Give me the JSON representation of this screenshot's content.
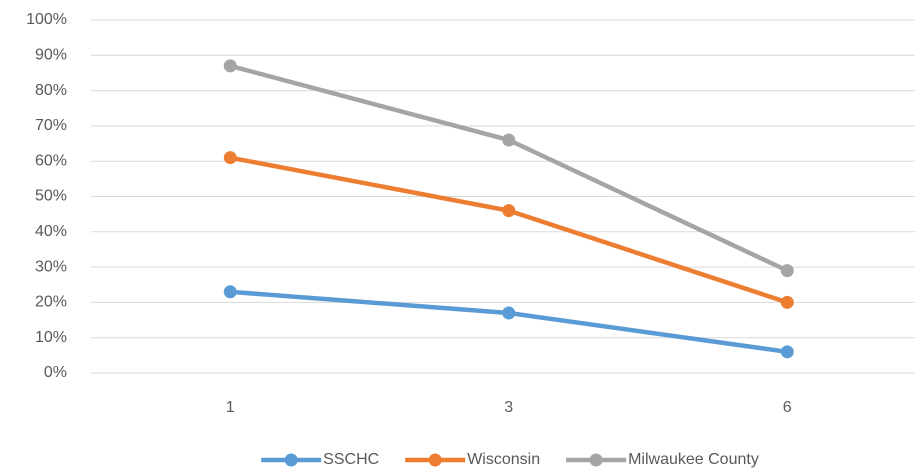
{
  "chart_data": {
    "type": "line",
    "categories": [
      "1",
      "3",
      "6"
    ],
    "series": [
      {
        "name": "SSCHC",
        "color": "#5b9bd5",
        "values": [
          23,
          17,
          6
        ]
      },
      {
        "name": "Wisconsin",
        "color": "#ed7d31",
        "values": [
          61,
          46,
          20
        ]
      },
      {
        "name": "Milwaukee County",
        "color": "#a5a5a5",
        "values": [
          87,
          66,
          29
        ]
      }
    ],
    "ylim": [
      0,
      100
    ],
    "yticks": [
      {
        "value": 0,
        "label": "0%"
      },
      {
        "value": 10,
        "label": "10%"
      },
      {
        "value": 20,
        "label": "20%"
      },
      {
        "value": 30,
        "label": "30%"
      },
      {
        "value": 40,
        "label": "40%"
      },
      {
        "value": 50,
        "label": "50%"
      },
      {
        "value": 60,
        "label": "60%"
      },
      {
        "value": 70,
        "label": "70%"
      },
      {
        "value": 80,
        "label": "80%"
      },
      {
        "value": 90,
        "label": "90%"
      },
      {
        "value": 100,
        "label": "100%"
      }
    ],
    "grid": true,
    "legend": "bottom"
  }
}
